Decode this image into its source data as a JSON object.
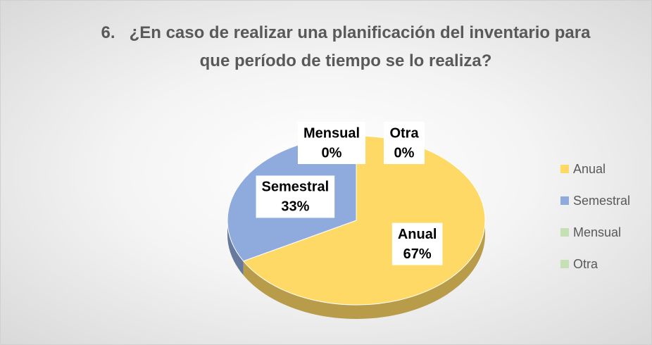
{
  "chart_data": {
    "type": "pie",
    "title": "6.   ¿En caso de realizar una planificación del inventario para que período de tiempo se lo realiza?",
    "categories": [
      "Anual",
      "Semestral",
      "Mensual",
      "Otra"
    ],
    "values": [
      67,
      33,
      0,
      0
    ],
    "value_labels": [
      "67%",
      "33%",
      "0%",
      "0%"
    ],
    "colors": [
      "#FFD966",
      "#8FAADC",
      "#C5E0B4",
      "#C5E0B4"
    ],
    "legend": "right"
  }
}
